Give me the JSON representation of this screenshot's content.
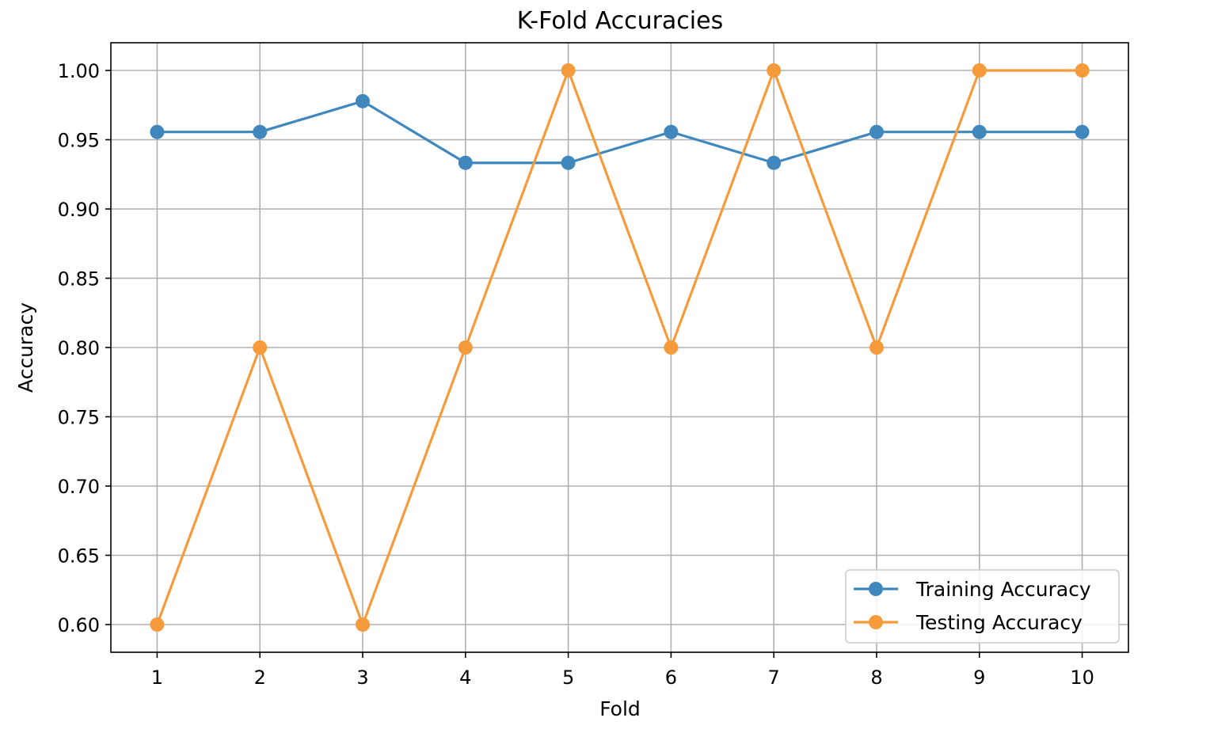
{
  "chart_data": {
    "type": "line",
    "title": "K-Fold Accuracies",
    "xlabel": "Fold",
    "ylabel": "Accuracy",
    "x": [
      1,
      2,
      3,
      4,
      5,
      6,
      7,
      8,
      9,
      10
    ],
    "x_ticks": [
      "1",
      "2",
      "3",
      "4",
      "5",
      "6",
      "7",
      "8",
      "9",
      "10"
    ],
    "y_ticks": [
      0.6,
      0.65,
      0.7,
      0.75,
      0.8,
      0.85,
      0.9,
      0.95,
      1.0
    ],
    "y_tick_labels": [
      "0.60",
      "0.65",
      "0.70",
      "0.75",
      "0.80",
      "0.85",
      "0.90",
      "0.95",
      "1.00"
    ],
    "xlim": [
      0.55,
      10.45
    ],
    "ylim": [
      0.58,
      1.02
    ],
    "grid": true,
    "legend_position": "lower-right",
    "series": [
      {
        "name": "Training Accuracy",
        "color": "#3f87bd",
        "marker": "circle",
        "values": [
          0.9556,
          0.9556,
          0.9778,
          0.9333,
          0.9333,
          0.9556,
          0.9333,
          0.9556,
          0.9556,
          0.9556
        ]
      },
      {
        "name": "Testing Accuracy",
        "color": "#f59b3b",
        "marker": "circle",
        "values": [
          0.6,
          0.8,
          0.6,
          0.8,
          1.0,
          0.8,
          1.0,
          0.8,
          1.0,
          1.0
        ]
      }
    ]
  }
}
